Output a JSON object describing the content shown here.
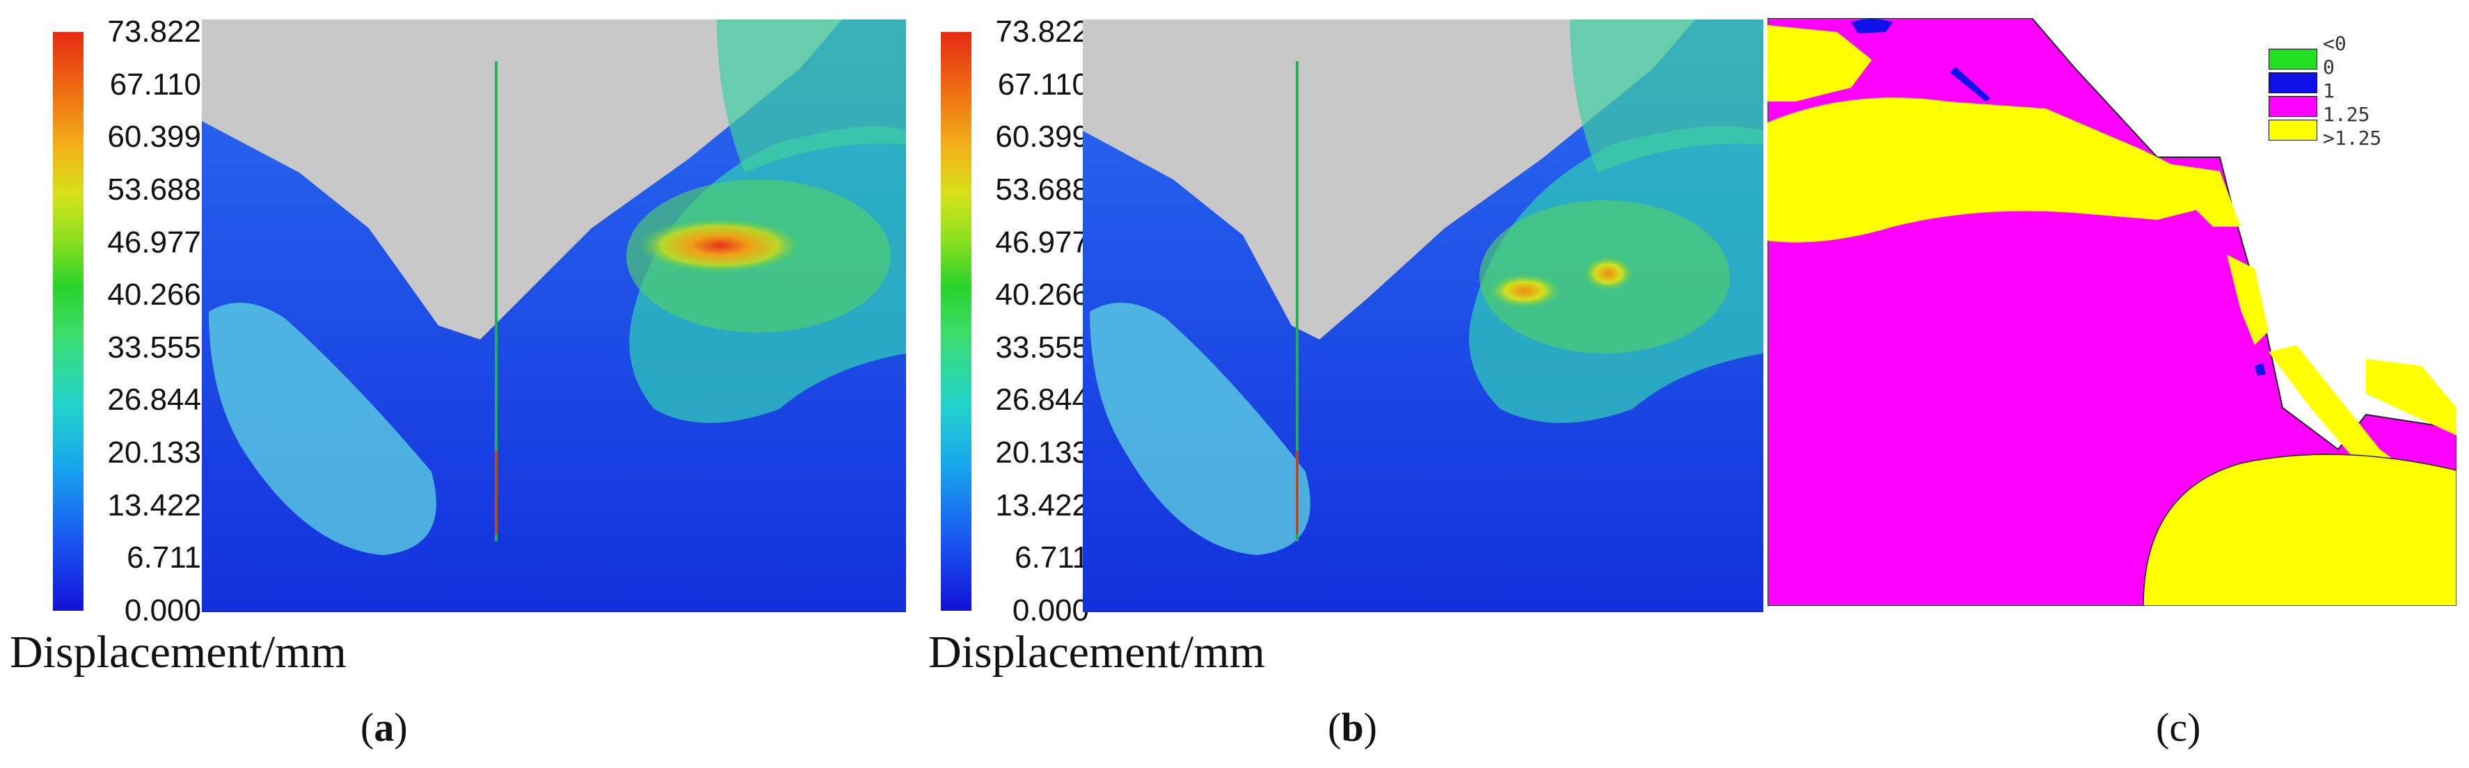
{
  "panels": [
    {
      "id": "a",
      "colorbar_ticks": [
        "73.822",
        "67.110",
        "60.399",
        "53.688",
        "46.977",
        "40.266",
        "33.555",
        "26.844",
        "20.133",
        "13.422",
        "6.711",
        "0.000"
      ],
      "unit_label": "Displacement/mm",
      "label": "a"
    },
    {
      "id": "b",
      "colorbar_ticks": [
        "73.822",
        "67.110",
        "60.399",
        "53.688",
        "46.977",
        "40.266",
        "33.555",
        "26.844",
        "20.133",
        "13.422",
        "6.711",
        "0.000"
      ],
      "unit_label": "Displacement/mm",
      "label": "b"
    },
    {
      "id": "c",
      "label": "c",
      "legend": [
        {
          "label": "<0",
          "color": "#22e022"
        },
        {
          "label": "0",
          "color": "#1010e8"
        },
        {
          "label": "1",
          "color": "#ff00ff"
        },
        {
          "label": "1.25",
          "color": "#ff00ff"
        },
        {
          "label": ">1.25",
          "color": "#ffff00"
        }
      ]
    }
  ],
  "colors": {
    "sky": "#c8c8c8",
    "low_displacement": "#1a3ee8",
    "high_displacement": "#e55a10",
    "safety_factor_main": "#ff00ff",
    "safety_factor_high": "#ffff00"
  }
}
